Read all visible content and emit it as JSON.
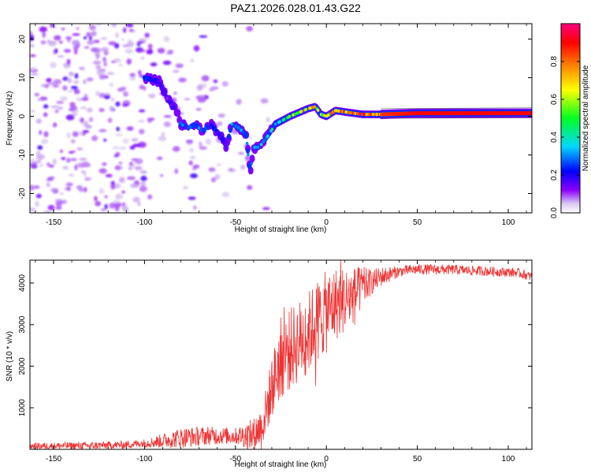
{
  "title": "PAZ1.2026.028.01.43.G22",
  "chart_data": [
    {
      "type": "heatmap",
      "xlabel": "Height of straight line (km)",
      "ylabel": "Frequency (Hz)",
      "xlim": [
        -163,
        113
      ],
      "ylim": [
        -25,
        24
      ],
      "xticks": [
        -150,
        -100,
        -50,
        0,
        50,
        100
      ],
      "yticks": [
        -20,
        -10,
        0,
        10,
        20
      ],
      "colorbar": {
        "label": "Normalized spectral amplitude",
        "range": [
          0.0,
          1.0
        ],
        "ticks": [
          0.0,
          0.2,
          0.4,
          0.6,
          0.8
        ],
        "colors": [
          "#d8c6f0",
          "#8a00ff",
          "#0000ff",
          "#00d8ff",
          "#00ff20",
          "#ffff00",
          "#ff8000",
          "#ff0000",
          "#ff0080"
        ]
      },
      "ridge": [
        {
          "x": -100,
          "y": 10,
          "v": 0.25
        },
        {
          "x": -92,
          "y": 9,
          "v": 0.2
        },
        {
          "x": -88,
          "y": 5,
          "v": 0.15
        },
        {
          "x": -82,
          "y": 1,
          "v": 0.2
        },
        {
          "x": -80,
          "y": -2,
          "v": 0.3
        },
        {
          "x": -76,
          "y": -3,
          "v": 0.25
        },
        {
          "x": -72,
          "y": -2,
          "v": 0.3
        },
        {
          "x": -68,
          "y": -4,
          "v": 0.3
        },
        {
          "x": -64,
          "y": -2,
          "v": 0.25
        },
        {
          "x": -58,
          "y": -5,
          "v": 0.2
        },
        {
          "x": -55,
          "y": -8,
          "v": 0.2
        },
        {
          "x": -52,
          "y": -2,
          "v": 0.3
        },
        {
          "x": -48,
          "y": -3,
          "v": 0.35
        },
        {
          "x": -44,
          "y": -5,
          "v": 0.35
        },
        {
          "x": -42,
          "y": -15,
          "v": 0.25
        },
        {
          "x": -40,
          "y": -8,
          "v": 0.35
        },
        {
          "x": -37,
          "y": -8,
          "v": 0.4
        },
        {
          "x": -32,
          "y": -5,
          "v": 0.4
        },
        {
          "x": -28,
          "y": -2,
          "v": 0.45
        },
        {
          "x": -24,
          "y": -1,
          "v": 0.55
        },
        {
          "x": -20,
          "y": 0,
          "v": 0.6
        },
        {
          "x": -15,
          "y": 1,
          "v": 0.65
        },
        {
          "x": -10,
          "y": 2,
          "v": 0.7
        },
        {
          "x": -6,
          "y": 2.5,
          "v": 0.75
        },
        {
          "x": -3,
          "y": 0.5,
          "v": 0.6
        },
        {
          "x": 0,
          "y": 0,
          "v": 0.7
        },
        {
          "x": 5,
          "y": 1.5,
          "v": 0.85
        },
        {
          "x": 12,
          "y": 1,
          "v": 0.85
        },
        {
          "x": 20,
          "y": 0.5,
          "v": 0.9
        },
        {
          "x": 30,
          "y": 0.5,
          "v": 0.85
        },
        {
          "x": 50,
          "y": 0.8,
          "v": 0.9
        },
        {
          "x": 80,
          "y": 0.8,
          "v": 0.9
        },
        {
          "x": 113,
          "y": 0.8,
          "v": 0.9
        }
      ]
    },
    {
      "type": "line",
      "xlabel": "Height of straight line (km)",
      "ylabel": "SNR (10 * v/v)",
      "xlim": [
        -163,
        113
      ],
      "ylim": [
        0,
        4550
      ],
      "xticks": [
        -150,
        -100,
        -50,
        0,
        50,
        100
      ],
      "yticks": [
        1000,
        2000,
        3000,
        4000
      ],
      "color": "#ee3333",
      "trend": [
        {
          "x": -163,
          "y": 80
        },
        {
          "x": -130,
          "y": 90
        },
        {
          "x": -110,
          "y": 110
        },
        {
          "x": -95,
          "y": 170
        },
        {
          "x": -80,
          "y": 280
        },
        {
          "x": -65,
          "y": 330
        },
        {
          "x": -50,
          "y": 320
        },
        {
          "x": -40,
          "y": 350
        },
        {
          "x": -35,
          "y": 600
        },
        {
          "x": -30,
          "y": 1500
        },
        {
          "x": -25,
          "y": 2200
        },
        {
          "x": -20,
          "y": 2400
        },
        {
          "x": -15,
          "y": 2600
        },
        {
          "x": -10,
          "y": 2800
        },
        {
          "x": -5,
          "y": 3100
        },
        {
          "x": 0,
          "y": 3300
        },
        {
          "x": 5,
          "y": 3500
        },
        {
          "x": 10,
          "y": 3600
        },
        {
          "x": 15,
          "y": 3700
        },
        {
          "x": 20,
          "y": 3900
        },
        {
          "x": 30,
          "y": 4150
        },
        {
          "x": 40,
          "y": 4280
        },
        {
          "x": 50,
          "y": 4330
        },
        {
          "x": 70,
          "y": 4320
        },
        {
          "x": 90,
          "y": 4280
        },
        {
          "x": 105,
          "y": 4250
        },
        {
          "x": 113,
          "y": 4150
        }
      ],
      "noise": [
        {
          "x": -163,
          "amp": 80
        },
        {
          "x": -100,
          "amp": 100
        },
        {
          "x": -80,
          "amp": 250
        },
        {
          "x": -50,
          "amp": 200
        },
        {
          "x": -35,
          "amp": 500
        },
        {
          "x": -25,
          "amp": 1000
        },
        {
          "x": 0,
          "amp": 1000
        },
        {
          "x": 15,
          "amp": 700
        },
        {
          "x": 25,
          "amp": 300
        },
        {
          "x": 40,
          "amp": 130
        },
        {
          "x": 113,
          "amp": 110
        }
      ]
    }
  ]
}
